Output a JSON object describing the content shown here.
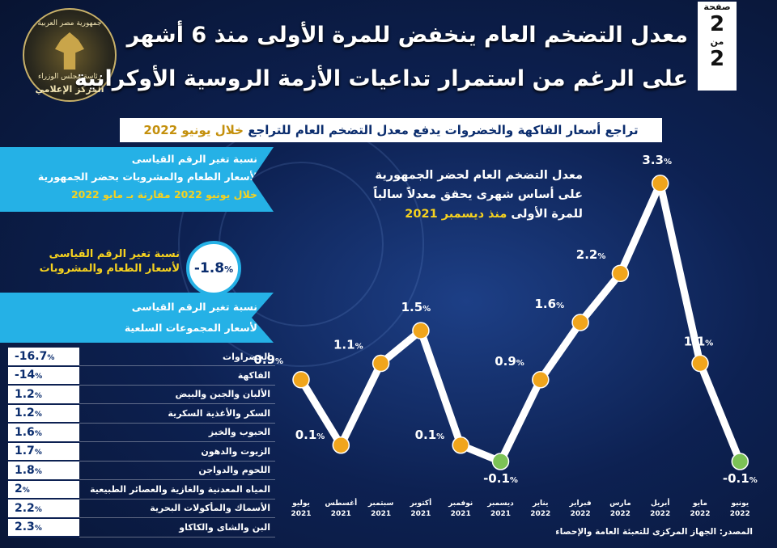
{
  "header": {
    "title_line1": "معدل التضخم العام ينخفض للمرة الأولى منذ 6 أشهر",
    "title_line2": "على الرغم من استمرار تداعيات الأزمة الروسية الأوكرانية",
    "page_label": "صفحة",
    "page_number": "2",
    "of_label": "من",
    "page_total": "2"
  },
  "logo": {
    "top_text": "جمهورية مصر العربية",
    "mid_text": "رئاسة مجلس الوزراء",
    "bottom_text": "المركز الإعلامي"
  },
  "subtitle": {
    "main": "تراجع أسعار الفاكهة والخضروات يدفع معدل التضخم العام للتراجع",
    "highlight": "خلال يونيو 2022"
  },
  "left_panel": {
    "box1_line1": "نسبة تغير الرقم القياسى",
    "box1_line2": "لأسعار الطعام والمشروبات بحضر الجمهورية",
    "box1_line3": "خلال يونيو 2022 مقارنة بـ مايو 2022",
    "food_line1": "نسبة تغير الرقم القياسى",
    "food_line2": "لأسعار الطعام والمشروبات",
    "food_value": "-1.8",
    "box2_line1": "نسبة تغير الرقم القياسى",
    "box2_line2": "لأسعار المجموعات السلعية",
    "percent_sign": "%"
  },
  "commodity_groups": [
    {
      "name": "الخضراوات",
      "value": "-16.7"
    },
    {
      "name": "الفاكهة",
      "value": "-14"
    },
    {
      "name": "الألبان والجبن والبيض",
      "value": "1.2"
    },
    {
      "name": "السكر والأغذية السكرية",
      "value": "1.2"
    },
    {
      "name": "الحبوب والخبز",
      "value": "1.6"
    },
    {
      "name": "الزيوت والدهون",
      "value": "1.7"
    },
    {
      "name": "اللحوم والدواجن",
      "value": "1.8"
    },
    {
      "name": "المياه المعدنية والغازية والعصائر الطبيعية",
      "value": "2"
    },
    {
      "name": "الأسماك والمأكولات البحرية",
      "value": "2.2"
    },
    {
      "name": "البن والشاى والكاكاو",
      "value": "2.3"
    }
  ],
  "chart_note": {
    "line1": "معدل التضخم العام لحضر الجمهورية",
    "line2": "على أساس شهرى يحقق معدلاً سالباً",
    "line3_a": "للمرة الأولى",
    "line3_b": "منذ ديسمبر 2021"
  },
  "chart_data": {
    "type": "line",
    "title": "معدل التضخم العام لحضر الجمهورية",
    "categories": [
      {
        "month": "يوليو",
        "year": "2021"
      },
      {
        "month": "أغسطس",
        "year": "2021"
      },
      {
        "month": "سبتمبر",
        "year": "2021"
      },
      {
        "month": "أكتوبر",
        "year": "2021"
      },
      {
        "month": "نوفمبر",
        "year": "2021"
      },
      {
        "month": "ديسمبر",
        "year": "2021"
      },
      {
        "month": "يناير",
        "year": "2022"
      },
      {
        "month": "فبراير",
        "year": "2022"
      },
      {
        "month": "مارس",
        "year": "2022"
      },
      {
        "month": "أبريل",
        "year": "2022"
      },
      {
        "month": "مايو",
        "year": "2022"
      },
      {
        "month": "يونيو",
        "year": "2022"
      }
    ],
    "series": [
      {
        "values": [
          0.9,
          0.1,
          1.1,
          1.5,
          0.1,
          -0.1,
          0.9,
          1.6,
          2.2,
          3.3,
          1.1,
          -0.1
        ]
      }
    ],
    "unit": "%",
    "colors": {
      "line": "#ffffff",
      "marker_positive": "#f0a51c",
      "marker_negative": "#7cc256"
    }
  },
  "source": "المصدر: الجهاز المركزى للتعبئة العامة والإحصاء"
}
